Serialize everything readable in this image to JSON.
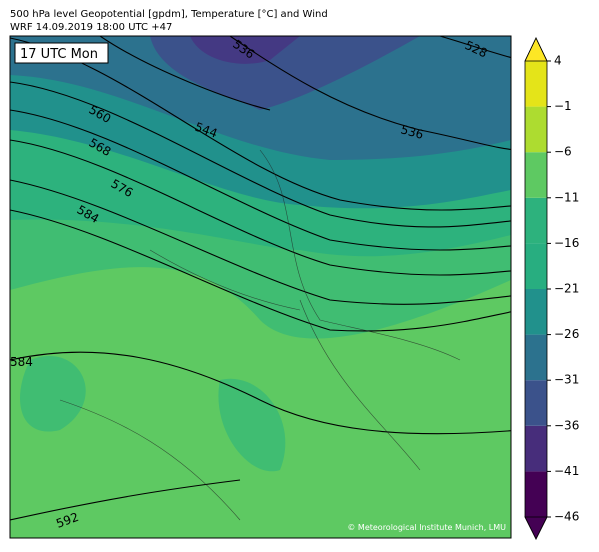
{
  "header": {
    "line1": "500 hPa level Geopotential [gpdm], Temperature [°C] and Wind",
    "line2": "WRF 14.09.2019 18:00 UTC +47"
  },
  "map": {
    "time_label": "17 UTC Mon",
    "contour_labels": [
      "536",
      "528",
      "560",
      "544",
      "536",
      "568",
      "576",
      "584",
      "584",
      "592"
    ],
    "credit": "© Meteorological Institute Munich, LMU"
  },
  "colorbar": {
    "ticks": [
      4,
      {
        "value": -1,
        "label": "−1"
      },
      {
        "value": -6,
        "label": "−6"
      },
      {
        "value": -11,
        "label": "−11"
      },
      {
        "value": -16,
        "label": "−16"
      },
      {
        "value": -21,
        "label": "−21"
      },
      {
        "value": -26,
        "label": "−26"
      },
      {
        "value": -31,
        "label": "−31"
      },
      {
        "value": -36,
        "label": "−36"
      },
      {
        "value": -41,
        "label": "−41"
      },
      {
        "value": -46,
        "label": "−46"
      }
    ]
  }
}
